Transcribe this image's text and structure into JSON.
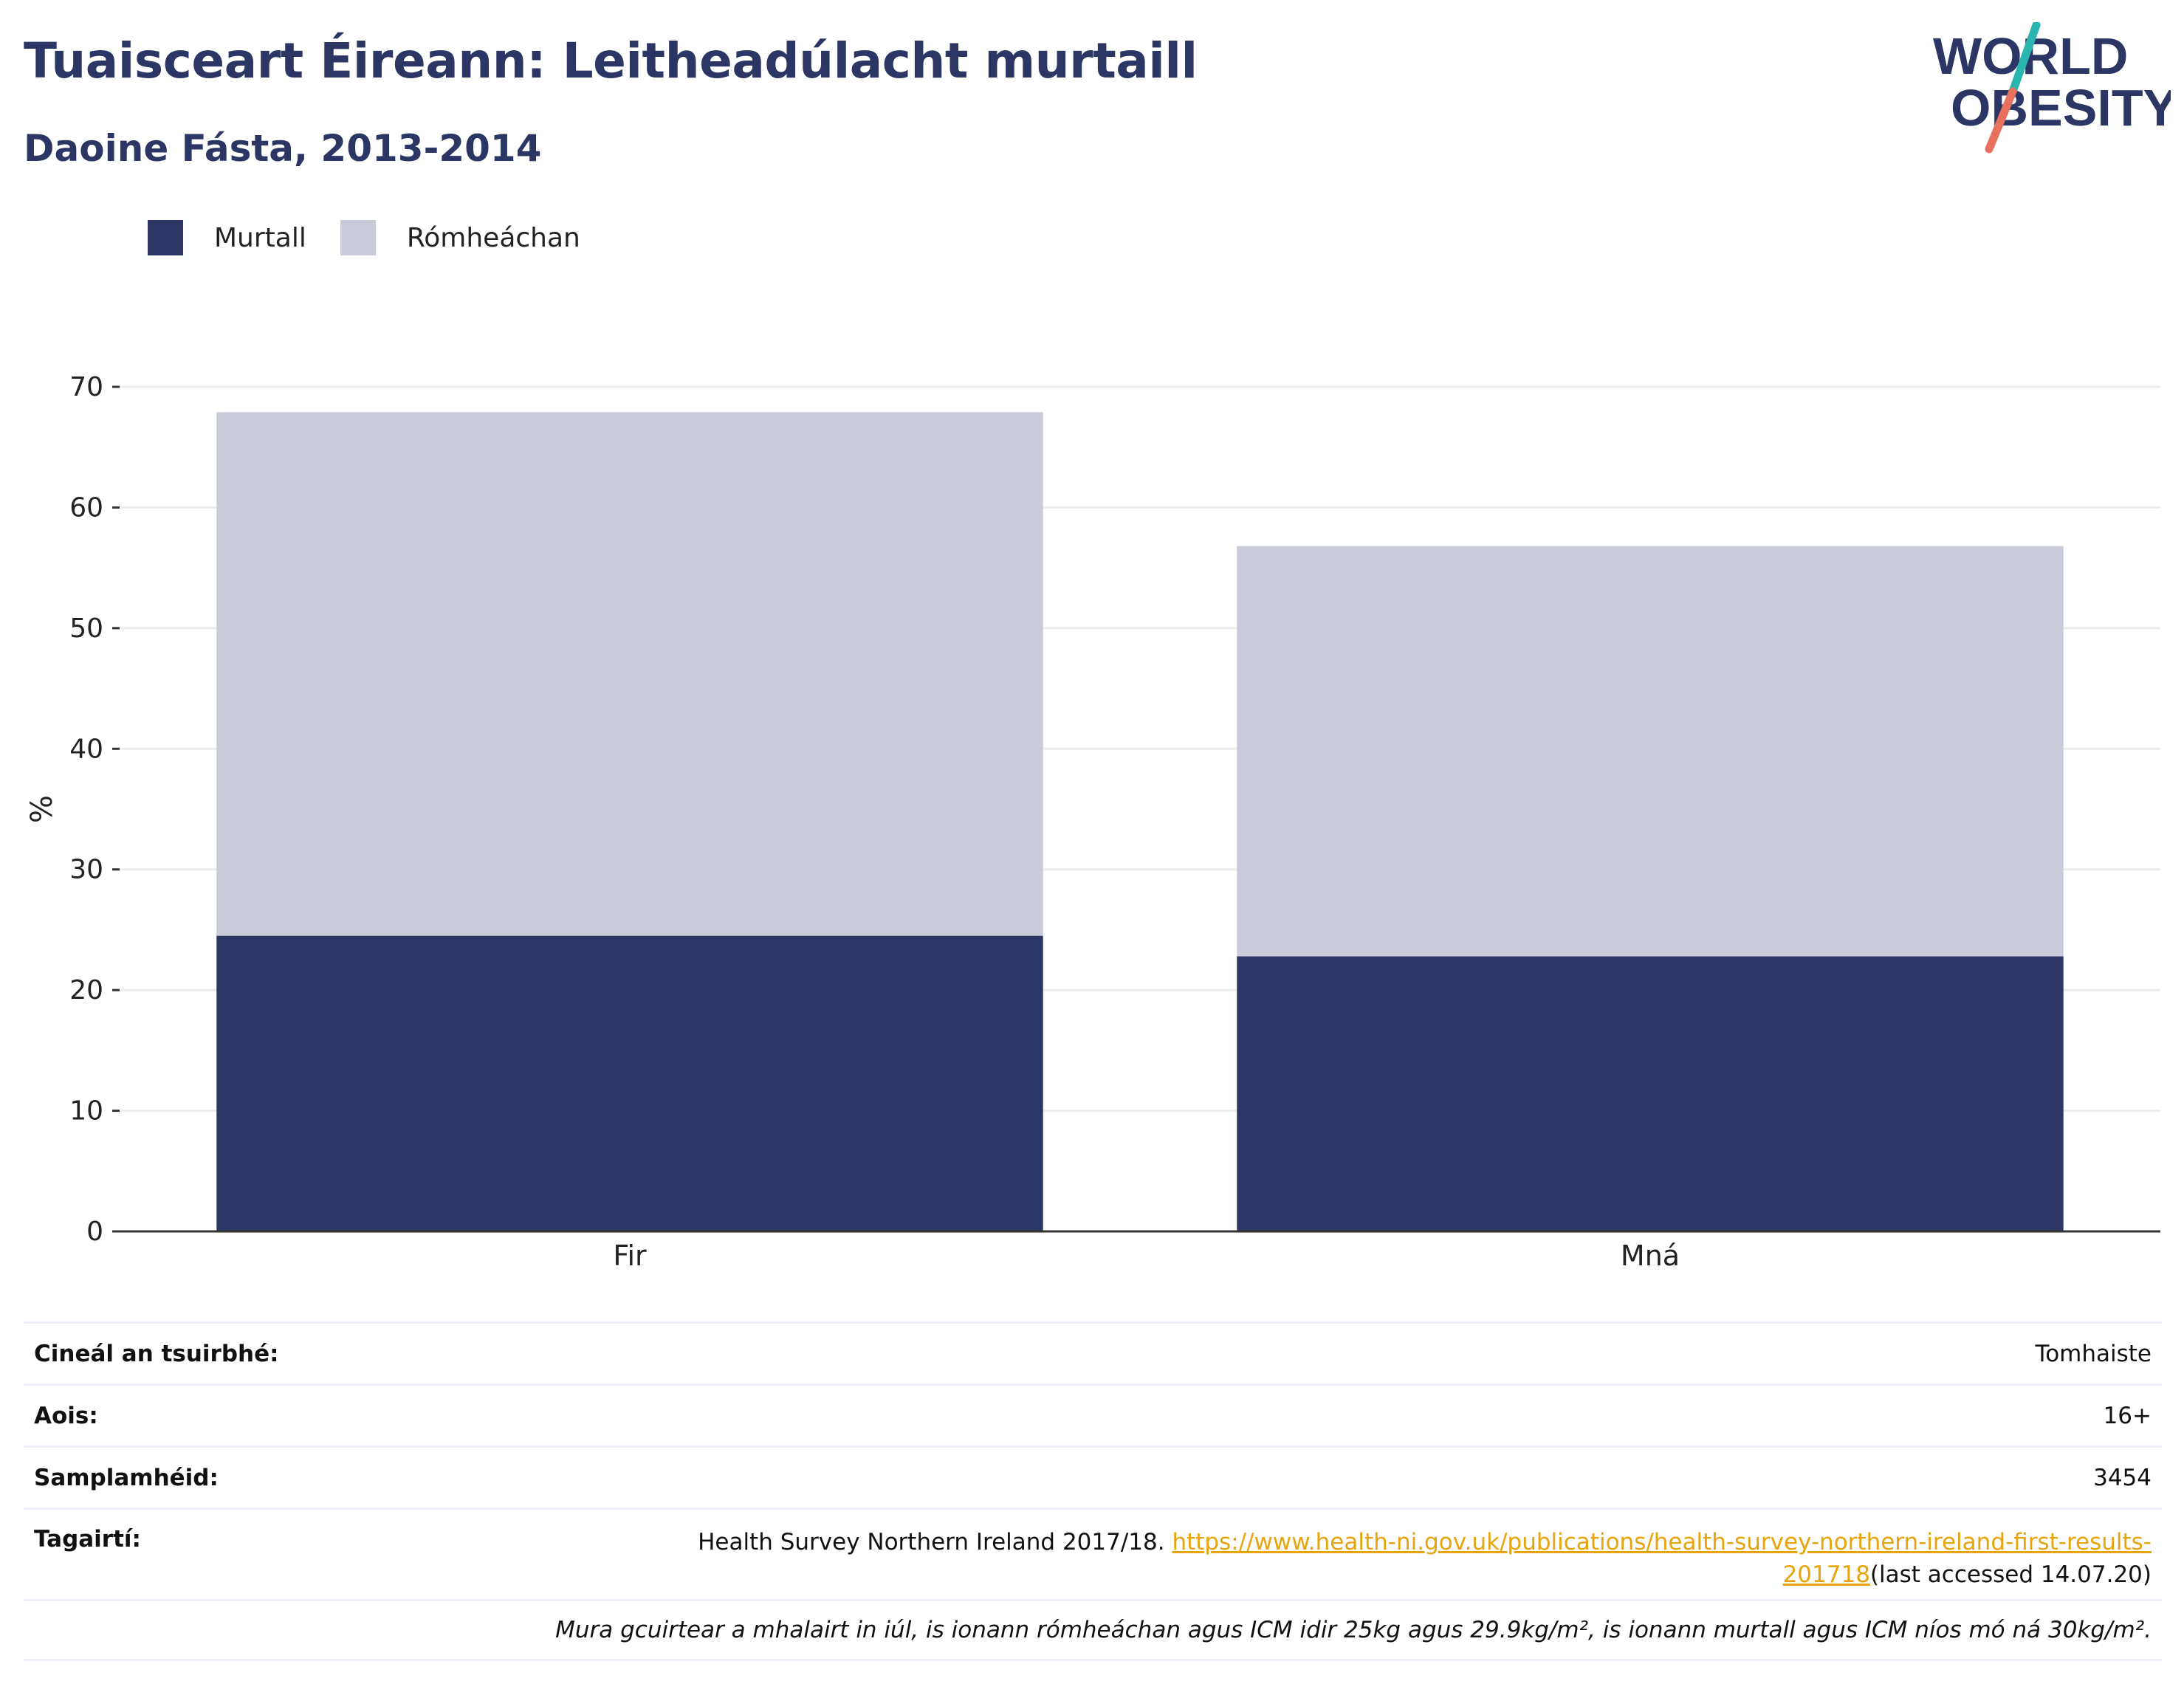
{
  "header": {
    "title": "Tuaisceart Éireann: Leitheadúlacht murtaill",
    "subtitle": "Daoine Fásta, 2013-2014"
  },
  "logo": {
    "line1": "WORLD",
    "line2": "OBESITY",
    "colors": {
      "text": "#2b3664",
      "slash_top": "#2bb5b0",
      "slash_bottom": "#e8715e"
    }
  },
  "colors": {
    "murtall": "#2b3664",
    "romheachan": "#c9ccd8",
    "grid": "#eeeeee",
    "axis": "#333333",
    "link": "#e8a40c"
  },
  "chart_data": {
    "type": "bar",
    "stacked": true,
    "categories": [
      "Fir",
      "Mná"
    ],
    "series": [
      {
        "name": "Murtall",
        "values": [
          24.5,
          22.8
        ]
      },
      {
        "name": "Rómheáchan",
        "values": [
          43.4,
          34.0
        ]
      }
    ],
    "ylabel": "%",
    "xlabel": "",
    "ylim": [
      0,
      70
    ],
    "yticks": [
      0,
      10,
      20,
      30,
      40,
      50,
      60,
      70
    ],
    "grid": true,
    "legend": "top-left"
  },
  "meta": {
    "survey_type": {
      "label": "Cineál an tsuirbhé:",
      "value": "Tomhaiste"
    },
    "age": {
      "label": "Aois:",
      "value": "16+"
    },
    "sample": {
      "label": "Samplamhéid:",
      "value": "3454"
    },
    "references": {
      "label": "Tagairtí:",
      "text": "Health Survey Northern Ireland 2017/18. ",
      "link": "https://www.health-ni.gov.uk/publications/health-survey-northern-ireland-first-results-201718",
      "suffix": "(last accessed 14.07.20)"
    },
    "note": "Mura gcuirtear a mhalairt in iúl, is ionann rómheáchan agus ICM idir 25kg agus 29.9kg/m², is ionann murtall agus ICM níos mó ná 30kg/m²."
  }
}
